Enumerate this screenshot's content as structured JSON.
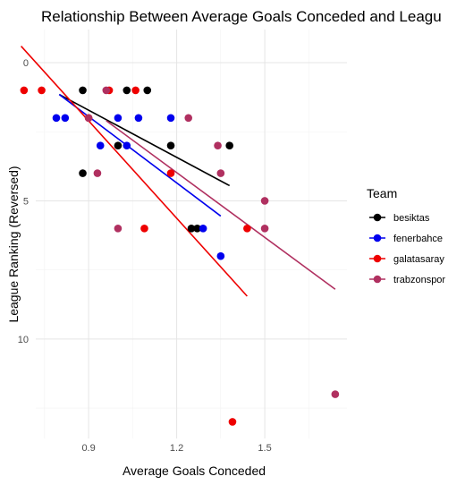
{
  "chart_data": {
    "type": "scatter",
    "title": "Relationship Between Average Goals Conceded and Leagu",
    "xlabel": "Average Goals Conceded",
    "ylabel": "League Ranking (Reversed)",
    "xlim": [
      0.72,
      1.78
    ],
    "ylim": [
      -1.2,
      13.6
    ],
    "y_reversed": true,
    "x_ticks": [
      0.9,
      1.2,
      1.5
    ],
    "x_tick_labels": [
      "0.9",
      "1.2",
      "1.5"
    ],
    "y_ticks": [
      0,
      5,
      10
    ],
    "y_tick_labels": [
      "0",
      "5",
      "10"
    ],
    "grid": true,
    "legend": {
      "title": "Team",
      "position": "right"
    },
    "series": [
      {
        "name": "besiktas",
        "color": "#000000",
        "points": [
          {
            "x": 0.88,
            "y": 1
          },
          {
            "x": 1.03,
            "y": 1
          },
          {
            "x": 1.1,
            "y": 1
          },
          {
            "x": 1.0,
            "y": 3
          },
          {
            "x": 1.18,
            "y": 3
          },
          {
            "x": 1.38,
            "y": 3
          },
          {
            "x": 0.88,
            "y": 4
          },
          {
            "x": 1.25,
            "y": 6
          },
          {
            "x": 1.27,
            "y": 6
          }
        ],
        "trend": {
          "x": [
            0.8,
            1.38
          ],
          "y": [
            1.15,
            4.45
          ]
        }
      },
      {
        "name": "fenerbahce",
        "color": "#0000ee",
        "points": [
          {
            "x": 0.79,
            "y": 2
          },
          {
            "x": 0.82,
            "y": 2
          },
          {
            "x": 1.0,
            "y": 2
          },
          {
            "x": 1.07,
            "y": 2
          },
          {
            "x": 1.18,
            "y": 2
          },
          {
            "x": 0.94,
            "y": 3
          },
          {
            "x": 1.03,
            "y": 3
          },
          {
            "x": 1.29,
            "y": 6
          },
          {
            "x": 1.35,
            "y": 7
          }
        ],
        "trend": {
          "x": [
            0.8,
            1.35
          ],
          "y": [
            1.15,
            5.55
          ]
        }
      },
      {
        "name": "galatasaray",
        "color": "#ee0000",
        "points": [
          {
            "x": 0.68,
            "y": 1
          },
          {
            "x": 0.74,
            "y": 1
          },
          {
            "x": 0.97,
            "y": 1
          },
          {
            "x": 1.06,
            "y": 1
          },
          {
            "x": 0.9,
            "y": 2
          },
          {
            "x": 1.18,
            "y": 4
          },
          {
            "x": 1.09,
            "y": 6
          },
          {
            "x": 1.44,
            "y": 6
          },
          {
            "x": 1.39,
            "y": 13
          }
        ],
        "trend": {
          "x": [
            0.67,
            1.44
          ],
          "y": [
            -0.6,
            8.45
          ]
        }
      },
      {
        "name": "trabzonspor",
        "color": "#b03060",
        "points": [
          {
            "x": 0.96,
            "y": 1
          },
          {
            "x": 0.9,
            "y": 2
          },
          {
            "x": 1.24,
            "y": 2
          },
          {
            "x": 1.34,
            "y": 3
          },
          {
            "x": 0.93,
            "y": 4
          },
          {
            "x": 1.35,
            "y": 4
          },
          {
            "x": 1.0,
            "y": 6
          },
          {
            "x": 1.5,
            "y": 5
          },
          {
            "x": 1.5,
            "y": 6
          },
          {
            "x": 1.74,
            "y": 12
          }
        ],
        "trend": {
          "x": [
            0.96,
            1.74
          ],
          "y": [
            2.1,
            8.2
          ]
        }
      }
    ]
  }
}
